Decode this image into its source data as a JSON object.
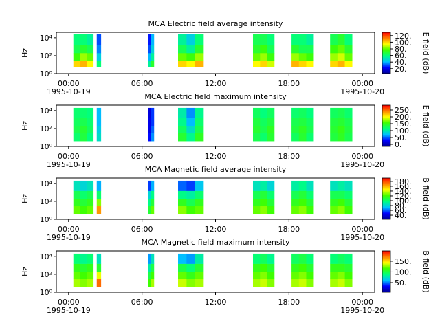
{
  "chart_data": [
    {
      "type": "spectrogram",
      "title": "MCA  Electric field average intensity",
      "ylabel": "Hz",
      "colorbar_label": "E field (dB)",
      "xlim": [
        -1,
        25
      ],
      "xticks": [
        {
          "value": 0,
          "label": "00:00"
        },
        {
          "value": 6,
          "label": "06:00"
        },
        {
          "value": 12,
          "label": "12:00"
        },
        {
          "value": 18,
          "label": "18:00"
        },
        {
          "value": 24,
          "label": "00:00"
        }
      ],
      "xdates": [
        {
          "value": 0,
          "label": "1995-10-19"
        },
        {
          "value": 24,
          "label": "1995-10-20"
        }
      ],
      "ylog": true,
      "ylim": [
        1,
        40000
      ],
      "yticks": [
        {
          "value": 1,
          "label": "10⁰"
        },
        {
          "value": 100,
          "label": "10²"
        },
        {
          "value": 10000,
          "label": "10⁴"
        }
      ],
      "freq_bins": [
        6,
        30,
        200,
        1500,
        25000
      ],
      "clim": [
        5,
        130
      ],
      "cticks": [
        {
          "value": 20,
          "label": "20."
        },
        {
          "value": 40,
          "label": "40."
        },
        {
          "value": 60,
          "label": "60."
        },
        {
          "value": 80,
          "label": "80."
        },
        {
          "value": 100,
          "label": "100."
        },
        {
          "value": 120,
          "label": "120."
        }
      ],
      "colormap": [
        "#000090",
        "#0000ff",
        "#00c0ff",
        "#00ff80",
        "#40ff00",
        "#ffff00",
        "#ff8000",
        "#ff0000"
      ],
      "intervals": [
        {
          "start": 0.39,
          "end": 2.02,
          "values": [
            [
              100,
              75,
              65,
              60
            ],
            [
              105,
              85,
              70,
              60
            ],
            [
              95,
              80,
              65,
              55
            ]
          ]
        },
        {
          "start": 2.3,
          "end": 2.64,
          "values": [
            [
              60,
              45,
              35,
              30
            ]
          ]
        },
        {
          "start": 6.52,
          "end": 6.97,
          "values": [
            [
              55,
              40,
              30,
              25
            ],
            [
              70,
              55,
              45,
              40
            ]
          ]
        },
        {
          "start": 8.94,
          "end": 11.02,
          "values": [
            [
              100,
              80,
              65,
              55
            ],
            [
              95,
              75,
              55,
              45
            ],
            [
              105,
              85,
              70,
              60
            ]
          ]
        },
        {
          "start": 15.06,
          "end": 16.8,
          "values": [
            [
              95,
              80,
              70,
              65
            ],
            [
              100,
              85,
              75,
              65
            ],
            [
              90,
              75,
              65,
              60
            ]
          ]
        },
        {
          "start": 18.21,
          "end": 20.01,
          "values": [
            [
              105,
              85,
              70,
              60
            ],
            [
              100,
              80,
              65,
              60
            ],
            [
              95,
              75,
              65,
              55
            ]
          ]
        },
        {
          "start": 21.36,
          "end": 23.16,
          "values": [
            [
              100,
              85,
              75,
              65
            ],
            [
              105,
              90,
              80,
              70
            ],
            [
              95,
              80,
              70,
              60
            ]
          ]
        }
      ]
    },
    {
      "type": "spectrogram",
      "title": "MCA  Electric field maximum intensity",
      "ylabel": "Hz",
      "colorbar_label": "E field (dB)",
      "xlim": [
        -1,
        25
      ],
      "xticks": [
        {
          "value": 0,
          "label": "00:00"
        },
        {
          "value": 6,
          "label": "06:00"
        },
        {
          "value": 12,
          "label": "12:00"
        },
        {
          "value": 18,
          "label": "18:00"
        },
        {
          "value": 24,
          "label": "00:00"
        }
      ],
      "xdates": [
        {
          "value": 0,
          "label": "1995-10-19"
        },
        {
          "value": 24,
          "label": "1995-10-20"
        }
      ],
      "ylog": true,
      "ylim": [
        1,
        40000
      ],
      "yticks": [
        {
          "value": 1,
          "label": "10⁰"
        },
        {
          "value": 100,
          "label": "10²"
        },
        {
          "value": 10000,
          "label": "10⁴"
        }
      ],
      "freq_bins": [
        4,
        30,
        200,
        1500,
        20000
      ],
      "clim": [
        -15,
        285
      ],
      "cticks": [
        {
          "value": 0,
          "label": "0."
        },
        {
          "value": 50,
          "label": "50."
        },
        {
          "value": 100,
          "label": "100."
        },
        {
          "value": 150,
          "label": "150."
        },
        {
          "value": 200,
          "label": "200."
        },
        {
          "value": 250,
          "label": "250."
        }
      ],
      "colormap": [
        "#000090",
        "#0000ff",
        "#00c0ff",
        "#00ff80",
        "#40ff00",
        "#ffff00",
        "#ff8000",
        "#ff0000"
      ],
      "intervals": [
        {
          "start": 0.39,
          "end": 2.02,
          "values": [
            [
              120,
              130,
              125,
              120
            ],
            [
              135,
              140,
              130,
              120
            ],
            [
              115,
              125,
              120,
              115
            ]
          ]
        },
        {
          "start": 2.3,
          "end": 2.64,
          "values": [
            [
              90,
              80,
              70,
              70
            ]
          ]
        },
        {
          "start": 6.52,
          "end": 6.97,
          "values": [
            [
              30,
              20,
              20,
              15
            ],
            [
              60,
              50,
              40,
              40
            ]
          ]
        },
        {
          "start": 8.94,
          "end": 11.02,
          "values": [
            [
              140,
              125,
              110,
              100
            ],
            [
              110,
              90,
              70,
              60
            ],
            [
              145,
              130,
              120,
              110
            ]
          ]
        },
        {
          "start": 15.06,
          "end": 16.8,
          "values": [
            [
              130,
              140,
              135,
              125
            ],
            [
              120,
              130,
              125,
              115
            ],
            [
              140,
              145,
              135,
              125
            ]
          ]
        },
        {
          "start": 18.21,
          "end": 20.01,
          "values": [
            [
              125,
              135,
              130,
              120
            ],
            [
              140,
              145,
              135,
              125
            ],
            [
              120,
              130,
              125,
              115
            ]
          ]
        },
        {
          "start": 21.36,
          "end": 23.16,
          "values": [
            [
              135,
              140,
              135,
              125
            ],
            [
              145,
              150,
              140,
              130
            ],
            [
              130,
              135,
              130,
              120
            ]
          ]
        }
      ]
    },
    {
      "type": "spectrogram",
      "title": "MCA  Magnetic field average intensity",
      "ylabel": "Hz",
      "colorbar_label": "B field (dB)",
      "xlim": [
        -1,
        25
      ],
      "xticks": [
        {
          "value": 0,
          "label": "00:00"
        },
        {
          "value": 6,
          "label": "06:00"
        },
        {
          "value": 12,
          "label": "12:00"
        },
        {
          "value": 18,
          "label": "18:00"
        },
        {
          "value": 24,
          "label": "00:00"
        }
      ],
      "xdates": [
        {
          "value": 0,
          "label": "1995-10-19"
        },
        {
          "value": 24,
          "label": "1995-10-20"
        }
      ],
      "ylog": true,
      "ylim": [
        1,
        40000
      ],
      "yticks": [
        {
          "value": 1,
          "label": "10⁰"
        },
        {
          "value": 100,
          "label": "10²"
        },
        {
          "value": 10000,
          "label": "10⁴"
        }
      ],
      "freq_bins": [
        4,
        30,
        200,
        1500,
        20000
      ],
      "clim": [
        23,
        194
      ],
      "cticks": [
        {
          "value": 40,
          "label": "40."
        },
        {
          "value": 60,
          "label": "60."
        },
        {
          "value": 80,
          "label": "80."
        },
        {
          "value": 100,
          "label": "100."
        },
        {
          "value": 120,
          "label": "120."
        },
        {
          "value": 140,
          "label": "140."
        },
        {
          "value": 160,
          "label": "160."
        },
        {
          "value": 180,
          "label": "180."
        }
      ],
      "colormap": [
        "#000090",
        "#0000ff",
        "#00c0ff",
        "#00ff80",
        "#40ff00",
        "#ffff00",
        "#ff8000",
        "#ff0000"
      ],
      "intervals": [
        {
          "start": 0.39,
          "end": 2.02,
          "values": [
            [
              125,
              115,
              105,
              85
            ],
            [
              120,
              110,
              100,
              80
            ],
            [
              125,
              115,
              105,
              85
            ]
          ]
        },
        {
          "start": 2.3,
          "end": 2.64,
          "values": [
            [
              165,
              130,
              100,
              70
            ]
          ]
        },
        {
          "start": 6.52,
          "end": 6.97,
          "values": [
            [
              110,
              95,
              80,
              55
            ],
            [
              125,
              110,
              95,
              70
            ]
          ]
        },
        {
          "start": 8.94,
          "end": 11.02,
          "values": [
            [
              130,
              115,
              95,
              60
            ],
            [
              120,
              105,
              90,
              55
            ],
            [
              125,
              115,
              100,
              75
            ]
          ]
        },
        {
          "start": 15.06,
          "end": 16.8,
          "values": [
            [
              125,
              115,
              105,
              85
            ],
            [
              130,
              120,
              110,
              90
            ],
            [
              120,
              110,
              100,
              80
            ]
          ]
        },
        {
          "start": 18.21,
          "end": 20.01,
          "values": [
            [
              125,
              115,
              105,
              90
            ],
            [
              130,
              120,
              110,
              95
            ],
            [
              120,
              110,
              100,
              85
            ]
          ]
        },
        {
          "start": 21.36,
          "end": 23.16,
          "values": [
            [
              125,
              115,
              105,
              85
            ],
            [
              130,
              120,
              105,
              90
            ],
            [
              120,
              110,
              100,
              85
            ]
          ]
        }
      ]
    },
    {
      "type": "spectrogram",
      "title": "MCA  Magnetic field maximum intensity",
      "ylabel": "Hz",
      "colorbar_label": "B field (dB)",
      "xlim": [
        -1,
        25
      ],
      "xticks": [
        {
          "value": 0,
          "label": "00:00"
        },
        {
          "value": 6,
          "label": "06:00"
        },
        {
          "value": 12,
          "label": "12:00"
        },
        {
          "value": 18,
          "label": "18:00"
        },
        {
          "value": 24,
          "label": "00:00"
        }
      ],
      "xdates": [
        {
          "value": 0,
          "label": "1995-10-19"
        },
        {
          "value": 24,
          "label": "1995-10-20"
        }
      ],
      "ylog": true,
      "ylim": [
        1,
        40000
      ],
      "yticks": [
        {
          "value": 1,
          "label": "10⁰"
        },
        {
          "value": 100,
          "label": "10²"
        },
        {
          "value": 10000,
          "label": "10⁴"
        }
      ],
      "freq_bins": [
        4,
        30,
        200,
        1500,
        20000
      ],
      "clim": [
        5,
        198
      ],
      "cticks": [
        {
          "value": 50,
          "label": "50."
        },
        {
          "value": 100,
          "label": "100."
        },
        {
          "value": 150,
          "label": "150."
        }
      ],
      "colormap": [
        "#000090",
        "#0000ff",
        "#00c0ff",
        "#00ff80",
        "#40ff00",
        "#ffff00",
        "#ff8000",
        "#ff0000"
      ],
      "intervals": [
        {
          "start": 0.39,
          "end": 2.02,
          "values": [
            [
              130,
              120,
              110,
              90
            ],
            [
              125,
              115,
              105,
              85
            ],
            [
              130,
              120,
              110,
              90
            ]
          ]
        },
        {
          "start": 2.3,
          "end": 2.64,
          "values": [
            [
              175,
              140,
              105,
              75
            ]
          ]
        },
        {
          "start": 6.52,
          "end": 6.97,
          "values": [
            [
              115,
              100,
              80,
              55
            ],
            [
              130,
              115,
              100,
              75
            ]
          ]
        },
        {
          "start": 8.94,
          "end": 11.02,
          "values": [
            [
              135,
              120,
              100,
              60
            ],
            [
              125,
              110,
              90,
              55
            ],
            [
              130,
              120,
              105,
              80
            ]
          ]
        },
        {
          "start": 15.06,
          "end": 16.8,
          "values": [
            [
              130,
              120,
              110,
              90
            ],
            [
              135,
              125,
              115,
              95
            ],
            [
              125,
              115,
              105,
              85
            ]
          ]
        },
        {
          "start": 18.21,
          "end": 20.01,
          "values": [
            [
              130,
              120,
              110,
              95
            ],
            [
              135,
              125,
              115,
              100
            ],
            [
              125,
              115,
              105,
              90
            ]
          ]
        },
        {
          "start": 21.36,
          "end": 23.16,
          "values": [
            [
              130,
              120,
              110,
              90
            ],
            [
              135,
              125,
              110,
              95
            ],
            [
              125,
              115,
              105,
              90
            ]
          ]
        }
      ]
    }
  ]
}
